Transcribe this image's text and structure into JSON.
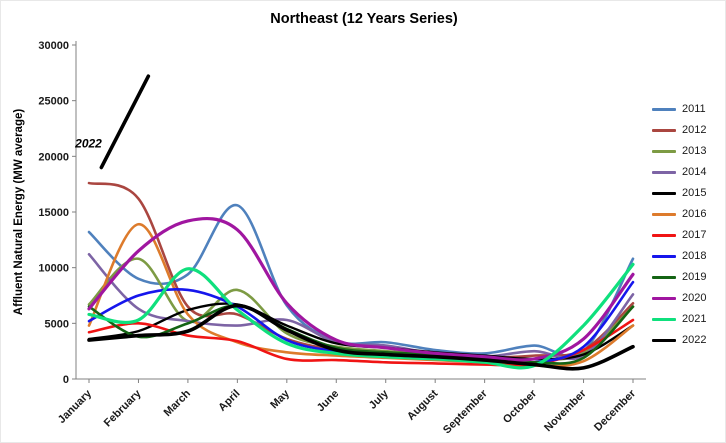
{
  "chart_data": {
    "type": "line",
    "title": "Northeast (12 Years Series)",
    "xlabel": "",
    "ylabel": "Affluent Natural Energy (MW average)",
    "ylim": [
      0,
      30000
    ],
    "ytick_step": 5000,
    "grid": false,
    "legend_position": "right",
    "categories": [
      "January",
      "February",
      "March",
      "April",
      "May",
      "June",
      "July",
      "August",
      "September",
      "October",
      "November",
      "December"
    ],
    "series": [
      {
        "name": "2011",
        "color": "#4f81bd",
        "width": 2.6,
        "values": [
          13200,
          9000,
          9400,
          15600,
          6600,
          3400,
          3300,
          2600,
          2300,
          3000,
          2500,
          10800
        ]
      },
      {
        "name": "2012",
        "color": "#aa4640",
        "width": 2.6,
        "values": [
          17600,
          16200,
          6500,
          5800,
          3600,
          2600,
          2200,
          2000,
          1900,
          2100,
          2600,
          6800
        ]
      },
      {
        "name": "2013",
        "color": "#7d9b44",
        "width": 2.6,
        "values": [
          6700,
          10800,
          5200,
          8000,
          4100,
          2900,
          2500,
          2200,
          2000,
          1800,
          2300,
          6500
        ]
      },
      {
        "name": "2014",
        "color": "#7d64a5",
        "width": 2.6,
        "values": [
          11200,
          6300,
          5200,
          4800,
          5300,
          3300,
          3000,
          2300,
          2000,
          2500,
          2100,
          7600
        ]
      },
      {
        "name": "2015",
        "color": "#000000",
        "width": 2.4,
        "values": [
          3600,
          4300,
          6200,
          6700,
          4800,
          3200,
          2800,
          2400,
          2100,
          1800,
          2200,
          4800
        ]
      },
      {
        "name": "2016",
        "color": "#dd7b2c",
        "width": 2.6,
        "values": [
          4800,
          13900,
          5800,
          3300,
          2400,
          2100,
          1900,
          1700,
          1500,
          1200,
          1600,
          4800
        ]
      },
      {
        "name": "2017",
        "color": "#f01414",
        "width": 2.6,
        "values": [
          4200,
          5000,
          3900,
          3400,
          1800,
          1700,
          1500,
          1400,
          1300,
          1300,
          2600,
          5300
        ]
      },
      {
        "name": "2018",
        "color": "#1616ec",
        "width": 2.6,
        "values": [
          5200,
          7500,
          8000,
          6500,
          3500,
          2500,
          2200,
          2000,
          1800,
          1500,
          2900,
          8700
        ]
      },
      {
        "name": "2019",
        "color": "#146414",
        "width": 2.6,
        "values": [
          6500,
          3800,
          5000,
          6600,
          4500,
          2800,
          2400,
          2200,
          1900,
          1500,
          1900,
          6500
        ]
      },
      {
        "name": "2020",
        "color": "#a016a0",
        "width": 3.2,
        "values": [
          6300,
          11500,
          14200,
          13400,
          6800,
          3500,
          2800,
          2300,
          2000,
          1800,
          3600,
          9400
        ]
      },
      {
        "name": "2021",
        "color": "#0fe07d",
        "width": 3.2,
        "values": [
          5800,
          5300,
          9900,
          6200,
          3200,
          2300,
          2000,
          1800,
          1500,
          1200,
          4800,
          10300
        ]
      },
      {
        "name": "2022",
        "color": "#000000",
        "width": 3.6,
        "values": [
          3500,
          3900,
          4300,
          6600,
          4400,
          2600,
          2200,
          2000,
          1700,
          1300,
          1000,
          2900
        ]
      }
    ],
    "annotation": {
      "label": "2022",
      "line": {
        "x1": 0.25,
        "y1": 19000,
        "x2": 1.2,
        "y2": 27200
      },
      "label_x": -0.28,
      "label_y": 20800,
      "color": "#000000",
      "width": 3.6
    }
  }
}
